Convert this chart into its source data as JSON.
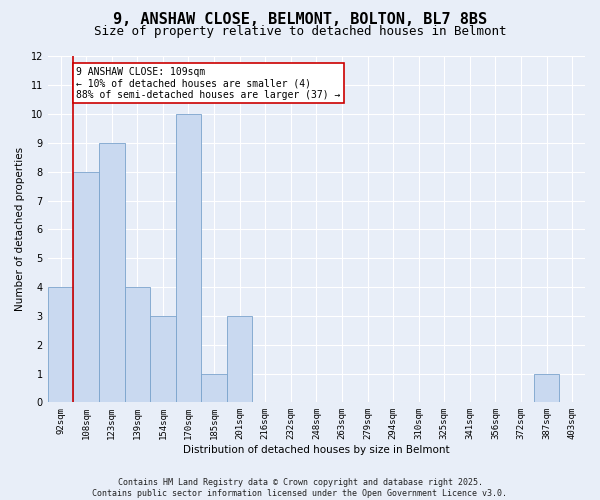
{
  "title": "9, ANSHAW CLOSE, BELMONT, BOLTON, BL7 8BS",
  "subtitle": "Size of property relative to detached houses in Belmont",
  "categories": [
    "92sqm",
    "108sqm",
    "123sqm",
    "139sqm",
    "154sqm",
    "170sqm",
    "185sqm",
    "201sqm",
    "216sqm",
    "232sqm",
    "248sqm",
    "263sqm",
    "279sqm",
    "294sqm",
    "310sqm",
    "325sqm",
    "341sqm",
    "356sqm",
    "372sqm",
    "387sqm",
    "403sqm"
  ],
  "values": [
    4,
    8,
    9,
    4,
    3,
    10,
    1,
    3,
    0,
    0,
    0,
    0,
    0,
    0,
    0,
    0,
    0,
    0,
    0,
    1,
    0
  ],
  "bar_color": "#c9d9f0",
  "bar_edge_color": "#7aa3cc",
  "vline_color": "#cc0000",
  "annotation_text": "9 ANSHAW CLOSE: 109sqm\n← 10% of detached houses are smaller (4)\n88% of semi-detached houses are larger (37) →",
  "annotation_box_color": "#ffffff",
  "annotation_box_edge": "#cc0000",
  "ylabel": "Number of detached properties",
  "xlabel": "Distribution of detached houses by size in Belmont",
  "ylim": [
    0,
    12
  ],
  "yticks": [
    0,
    1,
    2,
    3,
    4,
    5,
    6,
    7,
    8,
    9,
    10,
    11,
    12
  ],
  "bg_color": "#e8eef8",
  "grid_color": "#ffffff",
  "footer": "Contains HM Land Registry data © Crown copyright and database right 2025.\nContains public sector information licensed under the Open Government Licence v3.0.",
  "title_fontsize": 11,
  "subtitle_fontsize": 9,
  "label_fontsize": 7.5,
  "tick_fontsize": 6.5,
  "annotation_fontsize": 7,
  "footer_fontsize": 6
}
